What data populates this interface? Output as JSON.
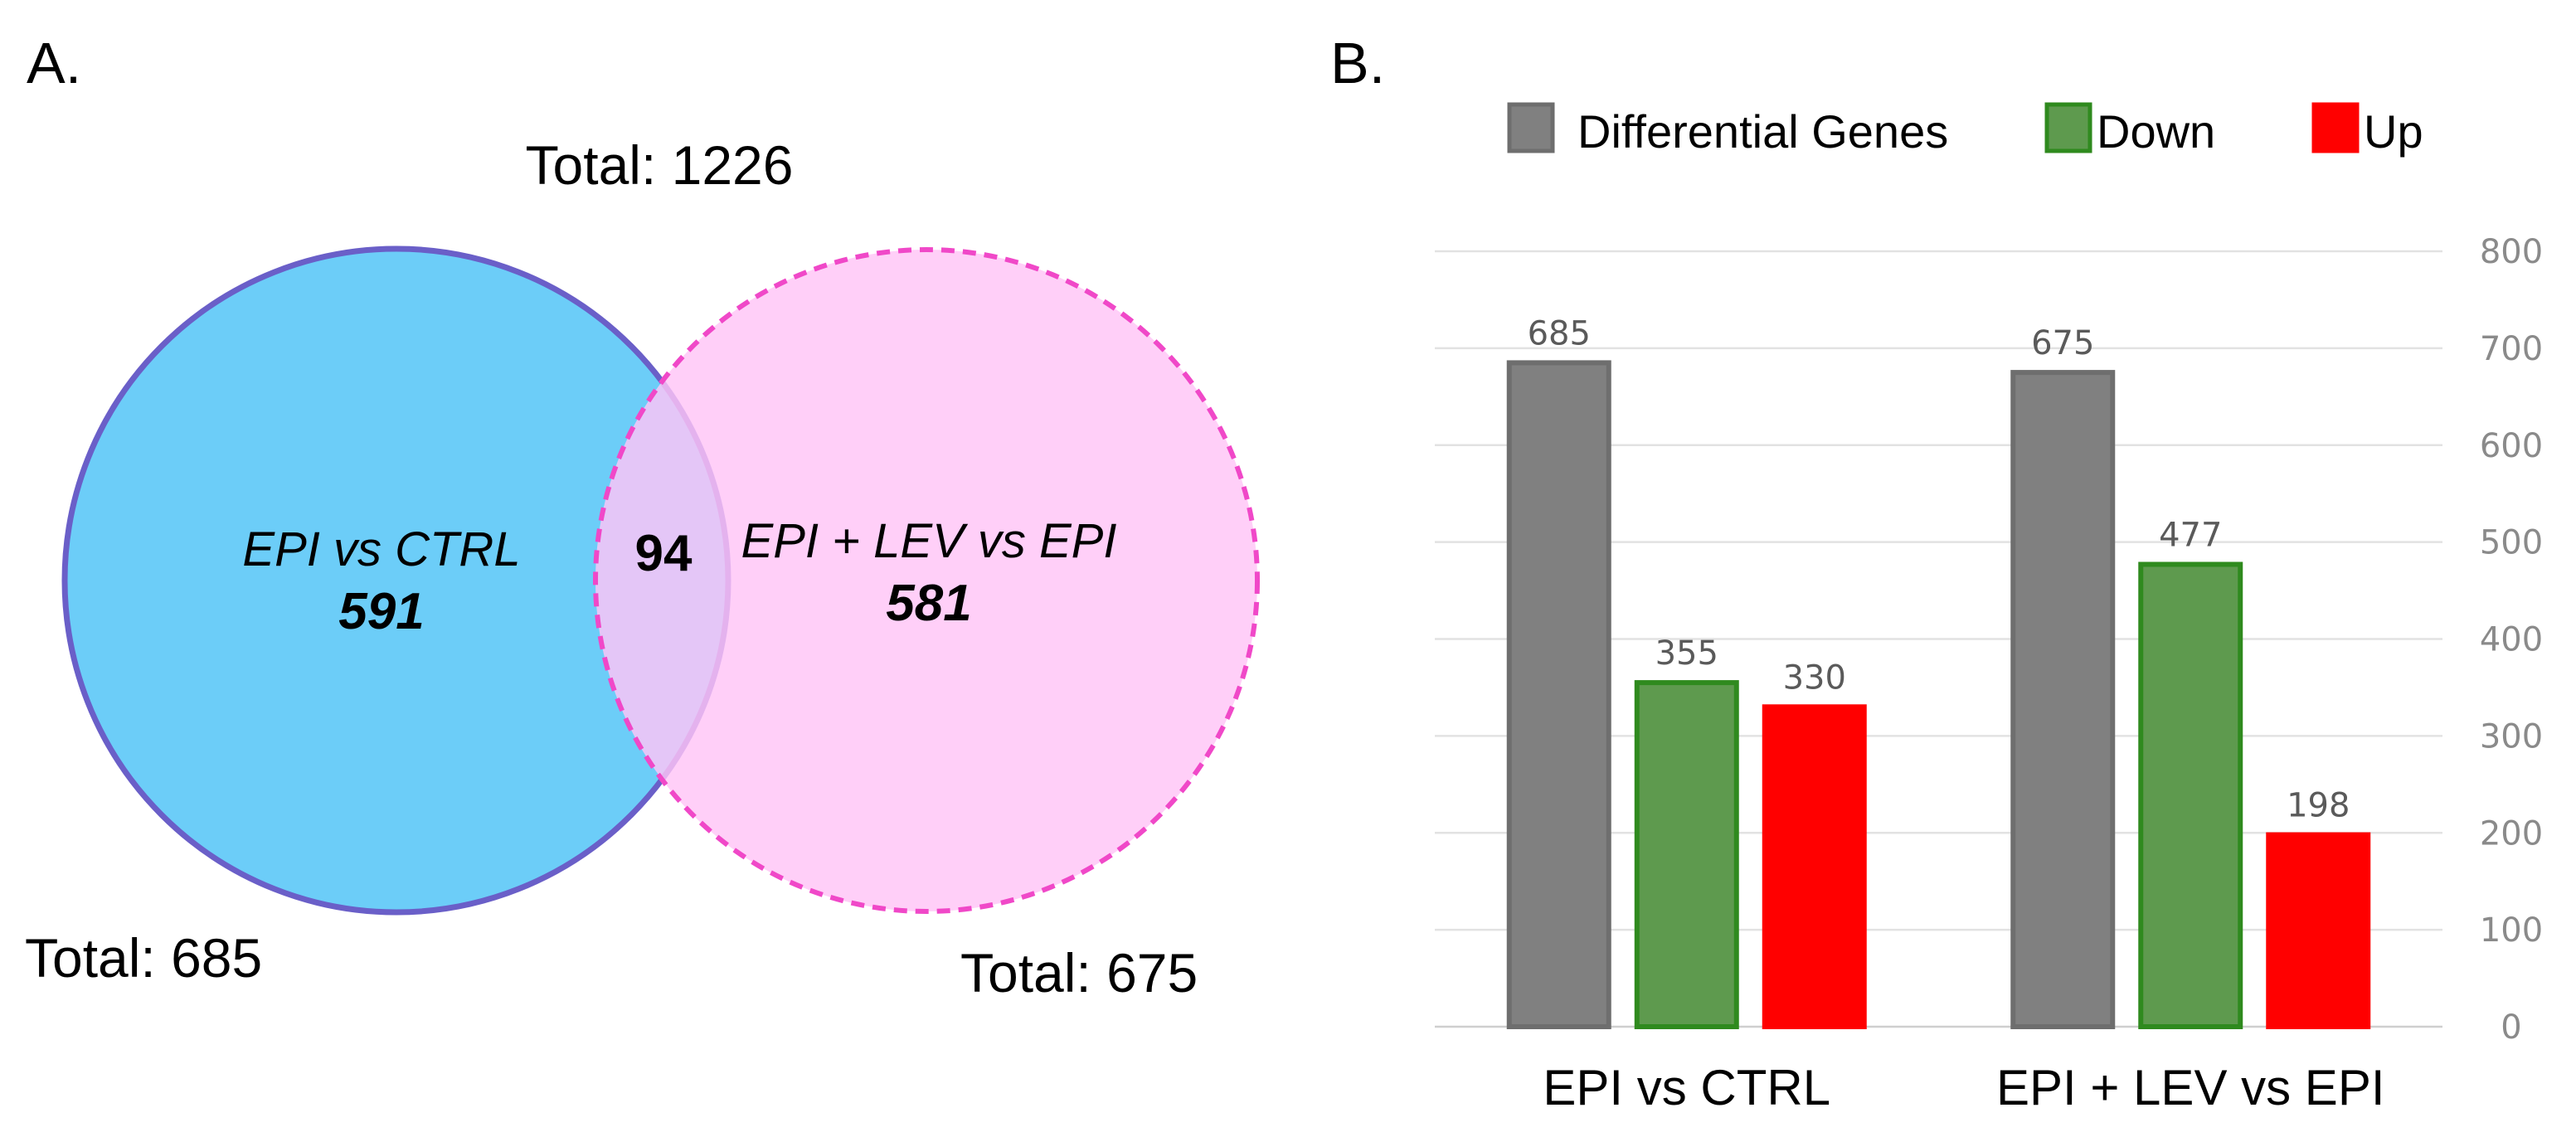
{
  "panel_a": {
    "label": "A.",
    "total_union": "Total: 1226",
    "left_set": {
      "name": "EPI vs CTRL",
      "unique": "591",
      "total": "Total: 685",
      "fill": "#6ccdf8",
      "stroke": "#6a5fc8"
    },
    "right_set": {
      "name": "EPI + LEV vs EPI",
      "unique": "581",
      "total": "Total: 675",
      "fill": "#ffc4f6",
      "stroke": "#f048c8"
    },
    "overlap": "94"
  },
  "panel_b": {
    "label": "B."
  },
  "chart_data": {
    "type": "bar",
    "categories": [
      "EPI vs CTRL",
      "EPI + LEV vs EPI"
    ],
    "series": [
      {
        "name": "Differential Genes",
        "values": [
          685,
          675
        ],
        "color": "#808080",
        "stroke": "#6e6e6e"
      },
      {
        "name": "Down",
        "values": [
          355,
          477
        ],
        "color": "#5e9a4e",
        "stroke": "#2f8a1e"
      },
      {
        "name": "Up",
        "values": [
          330,
          198
        ],
        "color": "#ff0000",
        "stroke": "#ff0000"
      }
    ],
    "data_labels": [
      [
        "685",
        "675"
      ],
      [
        "355",
        "477"
      ],
      [
        "330",
        "198"
      ]
    ],
    "ylim": [
      0,
      800
    ],
    "yticks": [
      "0",
      "100",
      "200",
      "300",
      "400",
      "500",
      "600",
      "700",
      "800"
    ],
    "y_axis_side": "right",
    "grid": true,
    "legend_position": "top"
  }
}
